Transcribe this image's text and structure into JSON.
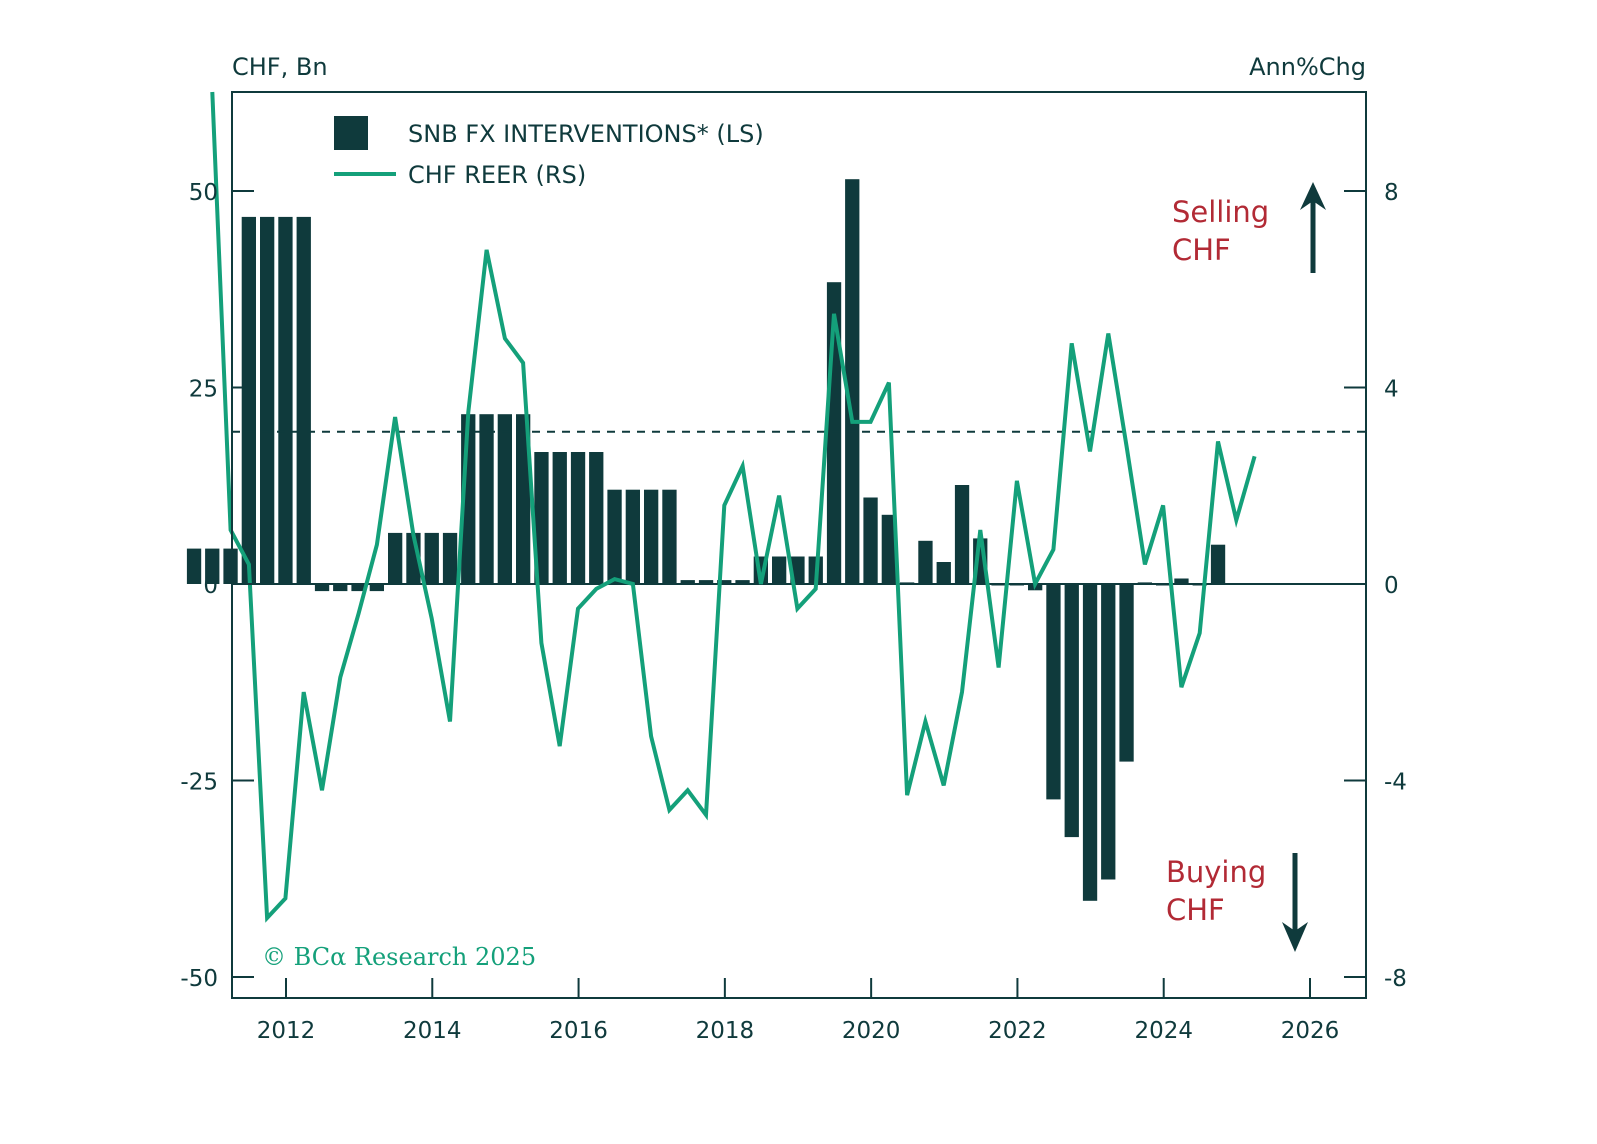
{
  "chart_data": {
    "type": "bar",
    "title": "",
    "ylabel_left": "CHF, Bn",
    "ylabel_right": "Ann%Chg",
    "xlabel": "",
    "x_range": [
      2011.25,
      2026.6
    ],
    "ylim_left": [
      -55,
      62
    ],
    "ylim_right": [
      -8.8,
      9.9
    ],
    "left_ticks": [
      50,
      25,
      0,
      -25,
      -50
    ],
    "right_ticks": [
      8,
      4,
      0,
      -4,
      -8
    ],
    "x_ticks": [
      2012,
      2014,
      2016,
      2018,
      2020,
      2022,
      2024,
      2026
    ],
    "reference_line": {
      "style": "dashed",
      "axis": "right",
      "value": 3.1
    },
    "grid": false,
    "legend_position": "top-left",
    "colors": {
      "bars": "#0f3a3c",
      "line": "#14a07a",
      "annotation": "#b22a35",
      "axis": "#0f3a3c"
    },
    "series": [
      {
        "name": "SNB FX INTERVENTIONS* (LS)",
        "kind": "bar",
        "axis": "left",
        "x": [
          "2011Q2",
          "2011Q3",
          "2011Q4",
          "2012Q1",
          "2012Q2",
          "2012Q3",
          "2012Q4",
          "2013Q1",
          "2013Q2",
          "2013Q3",
          "2013Q4",
          "2014Q1",
          "2014Q2",
          "2014Q3",
          "2014Q4",
          "2015Q1",
          "2015Q2",
          "2015Q3",
          "2015Q4",
          "2016Q1",
          "2016Q2",
          "2016Q3",
          "2016Q4",
          "2017Q1",
          "2017Q2",
          "2017Q3",
          "2017Q4",
          "2018Q1",
          "2018Q2",
          "2018Q3",
          "2018Q4",
          "2019Q1",
          "2019Q2",
          "2019Q3",
          "2019Q4",
          "2020Q1",
          "2020Q2",
          "2020Q3",
          "2020Q4",
          "2021Q1",
          "2021Q2",
          "2021Q3",
          "2021Q4",
          "2022Q1",
          "2022Q2",
          "2022Q3",
          "2022Q4",
          "2023Q1",
          "2023Q2",
          "2023Q3",
          "2023Q4",
          "2024Q1",
          "2024Q2",
          "2024Q3",
          "2024Q4",
          "2025Q1",
          "2025Q2"
        ],
        "values": [
          4.5,
          4.5,
          4.5,
          46.7,
          46.7,
          46.7,
          46.7,
          -0.9,
          -0.9,
          -0.9,
          -0.9,
          6.5,
          6.5,
          6.5,
          6.5,
          21.6,
          21.6,
          21.6,
          21.6,
          16.8,
          16.8,
          16.8,
          16.8,
          12.0,
          12.0,
          12.0,
          12.0,
          0.5,
          0.5,
          0.5,
          0.5,
          3.5,
          3.5,
          3.5,
          3.5,
          38.4,
          51.5,
          11.0,
          8.8,
          0.2,
          5.5,
          2.8,
          12.6,
          5.8,
          0.0,
          0.0,
          -0.8,
          -27.4,
          -32.2,
          -40.3,
          -37.6,
          -22.6,
          0.2,
          0.0,
          0.7,
          0.0,
          5.0
        ]
      },
      {
        "name": "CHF REER (RS)",
        "kind": "line",
        "axis": "right",
        "x_start": "2011Q3",
        "values": [
          10.5,
          1.1,
          0.4,
          -6.8,
          -6.4,
          -2.2,
          -4.2,
          -1.9,
          -0.6,
          0.8,
          3.4,
          1.0,
          -0.7,
          -2.8,
          3.5,
          6.8,
          5.0,
          4.5,
          -1.2,
          -3.3,
          -0.5,
          -0.1,
          0.1,
          0.0,
          -3.1,
          -4.6,
          -4.2,
          -4.7,
          1.6,
          2.4,
          0.0,
          1.8,
          -0.5,
          -0.1,
          5.5,
          3.3,
          3.3,
          4.1,
          -4.3,
          -2.8,
          -4.1,
          -2.2,
          1.1,
          -1.7,
          2.1,
          0.0,
          0.7,
          4.9,
          2.7,
          5.1,
          2.8,
          0.4,
          1.6,
          -2.1,
          -1.0,
          2.9,
          1.3,
          2.6
        ]
      }
    ],
    "annotations": [
      {
        "text_lines": [
          "Selling",
          "CHF"
        ],
        "arrow": "up"
      },
      {
        "text_lines": [
          "Buying",
          "CHF"
        ],
        "arrow": "down"
      }
    ],
    "credit": "© BCα Research 2025"
  }
}
